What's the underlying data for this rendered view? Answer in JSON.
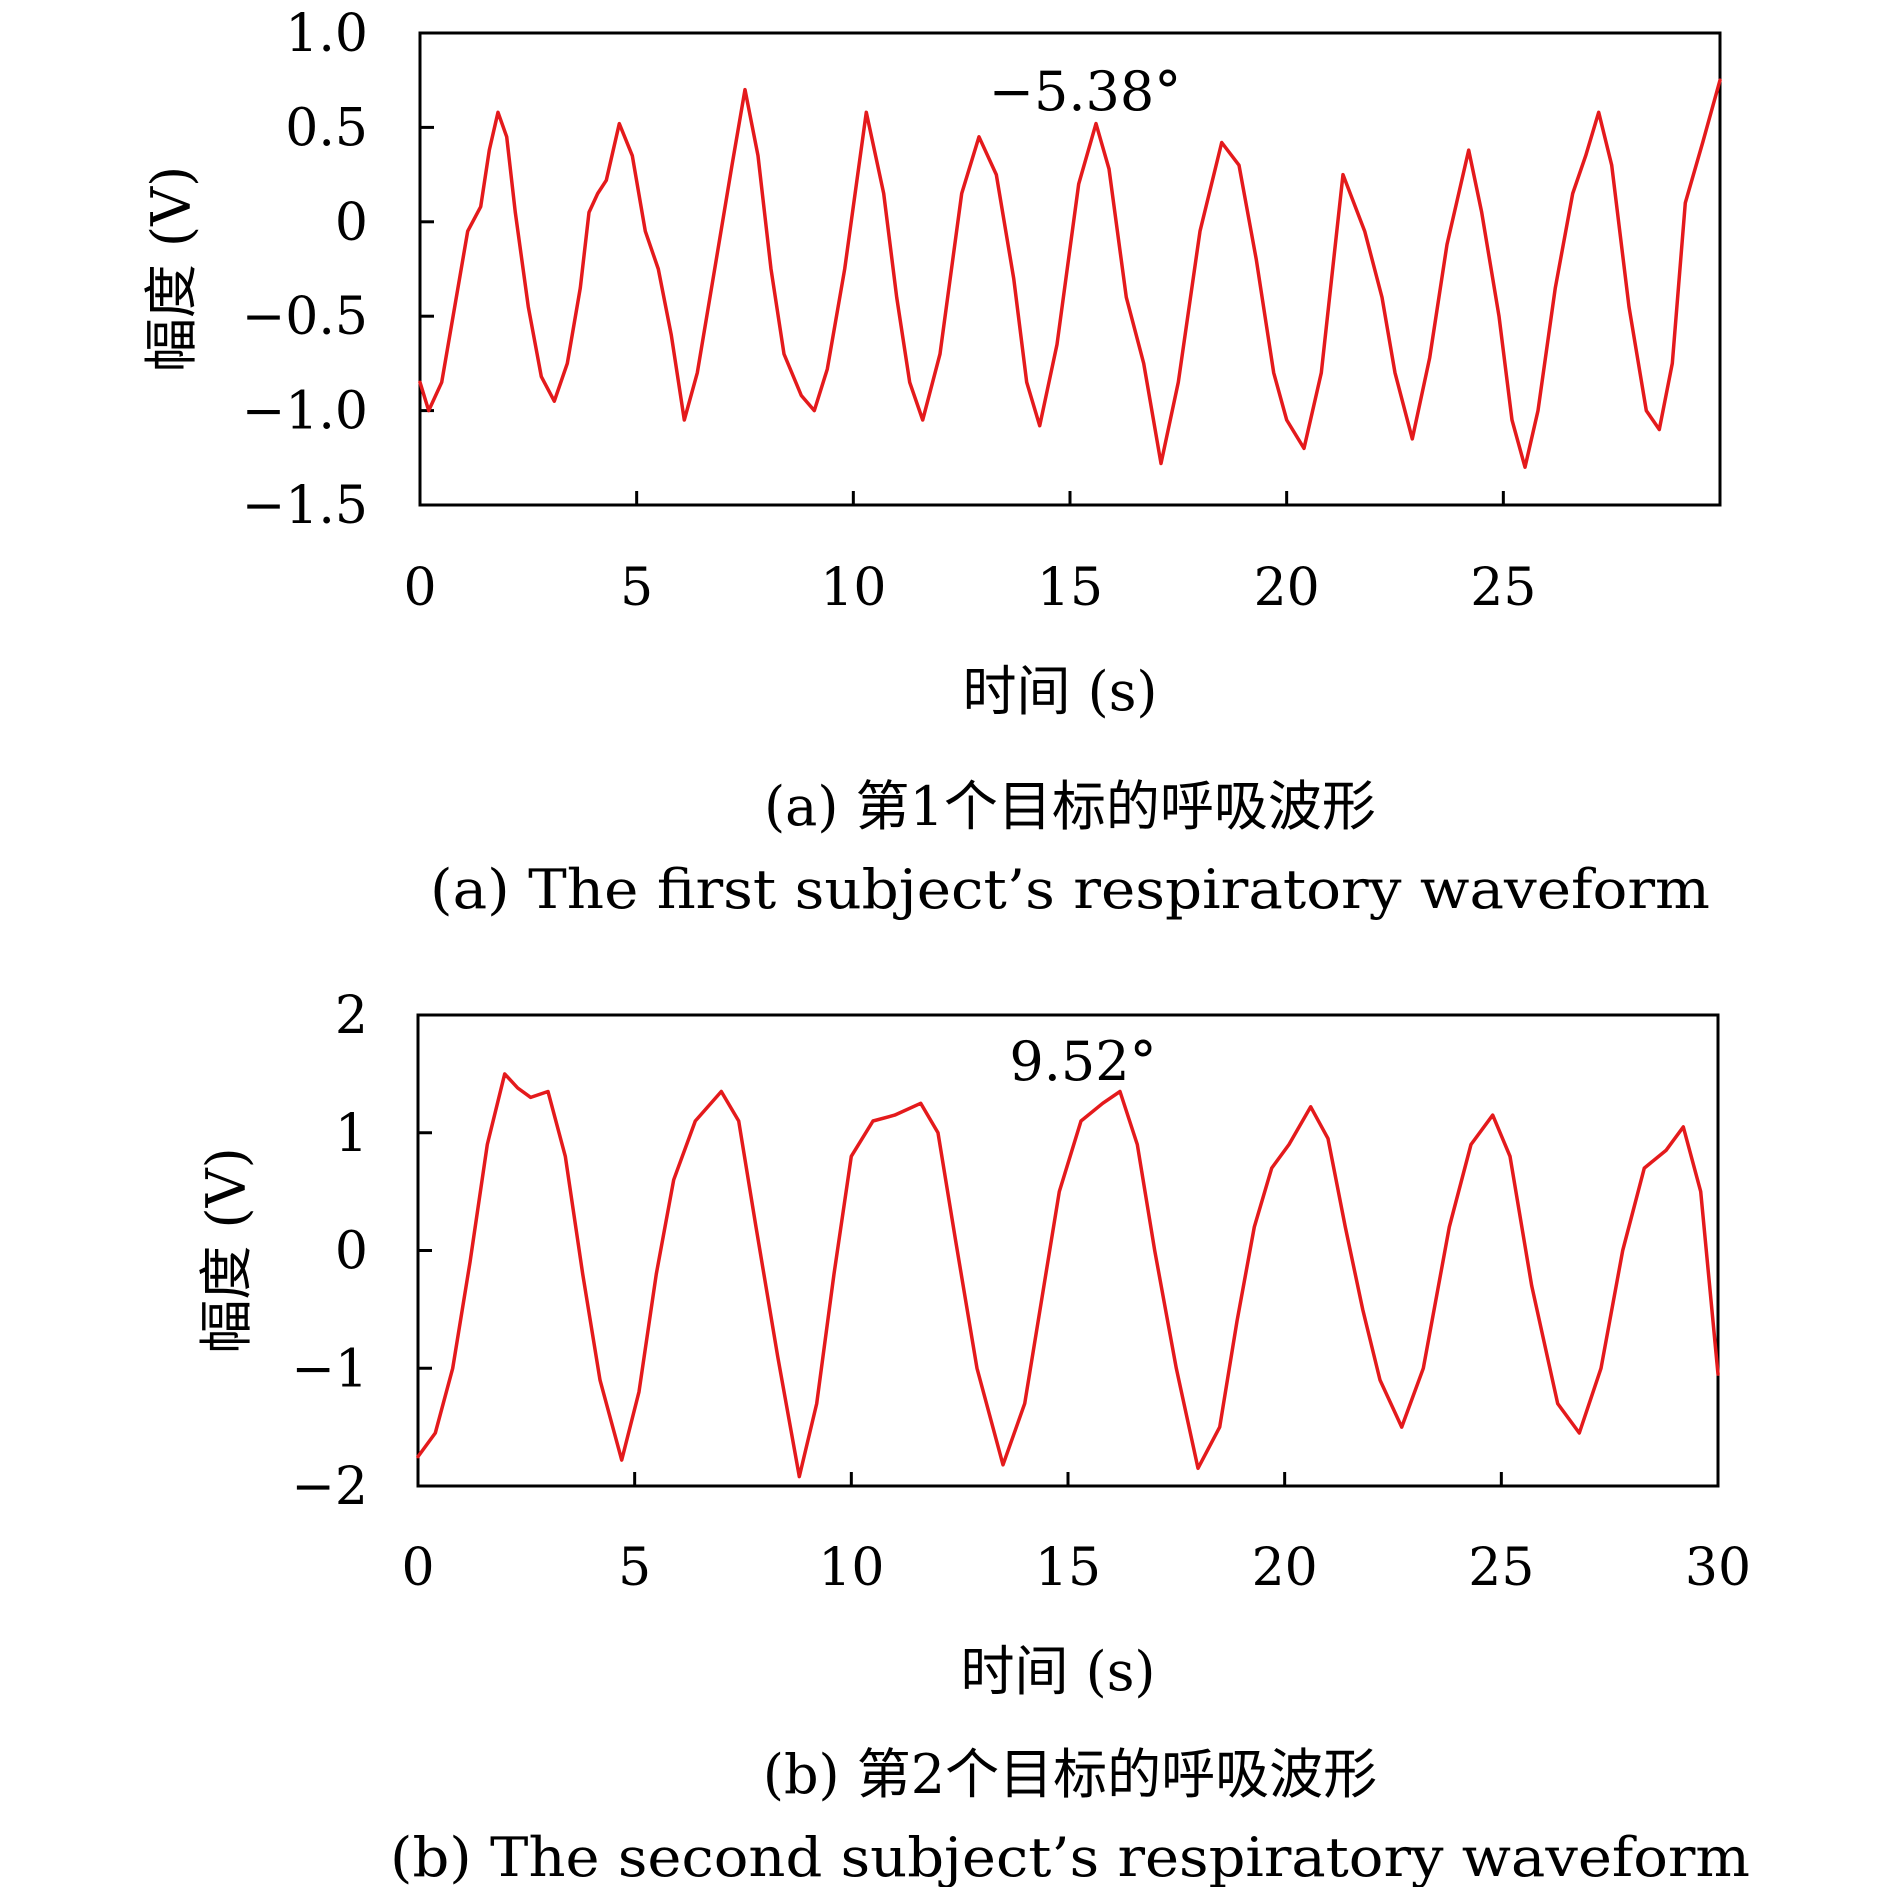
{
  "chart_data": [
    {
      "type": "line",
      "annotation": "−5.38°",
      "xlabel": "时间 (s)",
      "ylabel": "幅度 (V)",
      "xlim": [
        0,
        30
      ],
      "ylim": [
        -1.5,
        1.0
      ],
      "x_ticks": [
        0,
        5,
        10,
        15,
        20,
        25
      ],
      "x_tick_labels": [
        "0",
        "5",
        "10",
        "15",
        "20",
        "25"
      ],
      "y_ticks": [
        1.0,
        0.5,
        0,
        -0.5,
        -1.0,
        -1.5
      ],
      "y_tick_labels": [
        "1.0",
        "0.5",
        "0",
        "−0.5",
        "−1.0",
        "−1.5"
      ],
      "grid": false,
      "caption_cn": "(a) 第1个目标的呼吸波形",
      "caption_en": "(a) The first subject’s respiratory waveform",
      "color": "#e41a1c",
      "series": [
        {
          "x": [
            0,
            0.2,
            0.5,
            0.8,
            1.1,
            1.4,
            1.6,
            1.8,
            2.0,
            2.2,
            2.5,
            2.8,
            3.1,
            3.4,
            3.7,
            3.9,
            4.1,
            4.3,
            4.6,
            4.9,
            5.2,
            5.5,
            5.8,
            6.1,
            6.4,
            6.8,
            7.2,
            7.5,
            7.8,
            8.1,
            8.4,
            8.8,
            9.1,
            9.4,
            9.8,
            10.3,
            10.7,
            11.0,
            11.3,
            11.6,
            12.0,
            12.5,
            12.9,
            13.3,
            13.7,
            14.0,
            14.3,
            14.7,
            15.2,
            15.6,
            15.9,
            16.3,
            16.7,
            17.1,
            17.5,
            18.0,
            18.5,
            18.9,
            19.3,
            19.7,
            20.0,
            20.4,
            20.8,
            21.3,
            21.8,
            22.2,
            22.5,
            22.9,
            23.3,
            23.7,
            24.2,
            24.5,
            24.9,
            25.2,
            25.5,
            25.8,
            26.2,
            26.6,
            26.9,
            27.2,
            27.5,
            27.9,
            28.3,
            28.6,
            28.9,
            29.2,
            29.6,
            30.0
          ],
          "y": [
            -0.85,
            -1.0,
            -0.85,
            -0.45,
            -0.05,
            0.08,
            0.38,
            0.58,
            0.45,
            0.05,
            -0.45,
            -0.82,
            -0.95,
            -0.75,
            -0.35,
            0.05,
            0.15,
            0.22,
            0.52,
            0.35,
            -0.05,
            -0.25,
            -0.6,
            -1.05,
            -0.8,
            -0.25,
            0.3,
            0.7,
            0.35,
            -0.25,
            -0.7,
            -0.92,
            -1.0,
            -0.78,
            -0.25,
            0.58,
            0.15,
            -0.4,
            -0.85,
            -1.05,
            -0.7,
            0.15,
            0.45,
            0.25,
            -0.3,
            -0.85,
            -1.08,
            -0.65,
            0.2,
            0.52,
            0.28,
            -0.4,
            -0.75,
            -1.28,
            -0.85,
            -0.05,
            0.42,
            0.3,
            -0.2,
            -0.8,
            -1.05,
            -1.2,
            -0.8,
            0.25,
            -0.05,
            -0.4,
            -0.8,
            -1.15,
            -0.72,
            -0.12,
            0.38,
            0.05,
            -0.5,
            -1.05,
            -1.3,
            -1.0,
            -0.35,
            0.15,
            0.35,
            0.58,
            0.3,
            -0.45,
            -1.0,
            -1.1,
            -0.75,
            0.1,
            0.42,
            0.75
          ]
        }
      ]
    },
    {
      "type": "line",
      "annotation": "9.52°",
      "xlabel": "时间 (s)",
      "ylabel": "幅度 (V)",
      "xlim": [
        0,
        30
      ],
      "ylim": [
        -2,
        2
      ],
      "x_ticks": [
        0,
        5,
        10,
        15,
        20,
        25,
        30
      ],
      "x_tick_labels": [
        "0",
        "5",
        "10",
        "15",
        "20",
        "25",
        "30"
      ],
      "y_ticks": [
        2,
        1,
        0,
        -1,
        -2
      ],
      "y_tick_labels": [
        "2",
        "1",
        "0",
        "−1",
        "−2"
      ],
      "grid": false,
      "caption_cn": "(b) 第2个目标的呼吸波形",
      "caption_en": "(b) The second subject’s respiratory waveform",
      "color": "#e41a1c",
      "series": [
        {
          "x": [
            0,
            0.4,
            0.8,
            1.2,
            1.6,
            2.0,
            2.3,
            2.6,
            3.0,
            3.4,
            3.8,
            4.2,
            4.7,
            5.1,
            5.5,
            5.9,
            6.4,
            7.0,
            7.4,
            7.8,
            8.3,
            8.8,
            9.2,
            9.6,
            10.0,
            10.5,
            11.0,
            11.6,
            12.0,
            12.4,
            12.9,
            13.5,
            14.0,
            14.4,
            14.8,
            15.3,
            15.8,
            16.2,
            16.6,
            17.0,
            17.5,
            18.0,
            18.5,
            18.9,
            19.3,
            19.7,
            20.1,
            20.6,
            21.0,
            21.4,
            21.8,
            22.2,
            22.7,
            23.2,
            23.8,
            24.3,
            24.8,
            25.2,
            25.7,
            26.3,
            26.8,
            27.3,
            27.8,
            28.3,
            28.8,
            29.2,
            29.6,
            30.0
          ],
          "y": [
            -1.75,
            -1.55,
            -1.0,
            -0.1,
            0.9,
            1.5,
            1.38,
            1.3,
            1.35,
            0.8,
            -0.2,
            -1.1,
            -1.78,
            -1.2,
            -0.2,
            0.6,
            1.1,
            1.35,
            1.1,
            0.2,
            -0.9,
            -1.92,
            -1.3,
            -0.2,
            0.8,
            1.1,
            1.15,
            1.25,
            1.0,
            0.1,
            -1.0,
            -1.82,
            -1.3,
            -0.4,
            0.5,
            1.1,
            1.25,
            1.35,
            0.9,
            0.0,
            -1.0,
            -1.85,
            -1.5,
            -0.6,
            0.2,
            0.7,
            0.9,
            1.22,
            0.95,
            0.2,
            -0.5,
            -1.1,
            -1.5,
            -1.0,
            0.2,
            0.9,
            1.15,
            0.8,
            -0.3,
            -1.3,
            -1.55,
            -1.0,
            0.0,
            0.7,
            0.85,
            1.05,
            0.5,
            -1.05
          ]
        }
      ]
    }
  ]
}
